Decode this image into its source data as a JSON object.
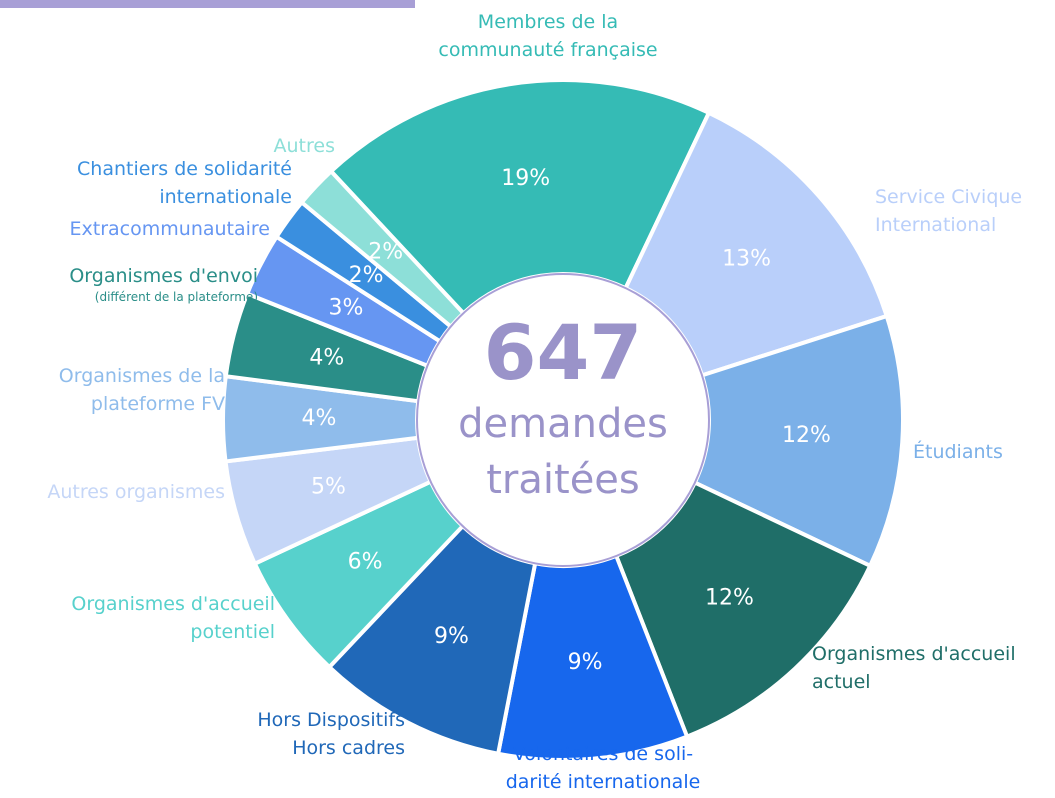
{
  "chart_data": {
    "type": "pie",
    "categories": [
      "Membres de la\ncommunauté française",
      "Service Civique\nInternational",
      "Étudiants",
      "Organismes d'accueil\nactuel",
      "Volontaires de soli-\ndarité internationale",
      "Hors Dispositifs\nHors cadres",
      "Organismes d'accueil\npotentiel",
      "Autres organismes",
      "Organismes de la\nplateforme FV",
      "Organismes d'envoi",
      "Extracommunautaire",
      "Chantiers de solidarité\ninternationale",
      "Autres"
    ],
    "values": [
      19,
      13,
      12,
      12,
      9,
      9,
      6,
      5,
      4,
      4,
      3,
      2,
      2
    ],
    "value_labels": [
      "19%",
      "13%",
      "12%",
      "12%",
      "9%",
      "9%",
      "6%",
      "5%",
      "4%",
      "4%",
      "3%",
      "2%",
      "2%"
    ],
    "colors": [
      "#35bbb5",
      "#b9cffa",
      "#7bb0e8",
      "#1f6e68",
      "#1767ed",
      "#2068b8",
      "#57d1cc",
      "#c5d6f7",
      "#8fbceb",
      "#2a8e88",
      "#6696f2",
      "#3a8fdf",
      "#8ddfd8"
    ],
    "annotations": [
      "(différent de la plateforme)"
    ],
    "center_value": 647,
    "center_label": "demandes\ntraitées"
  }
}
